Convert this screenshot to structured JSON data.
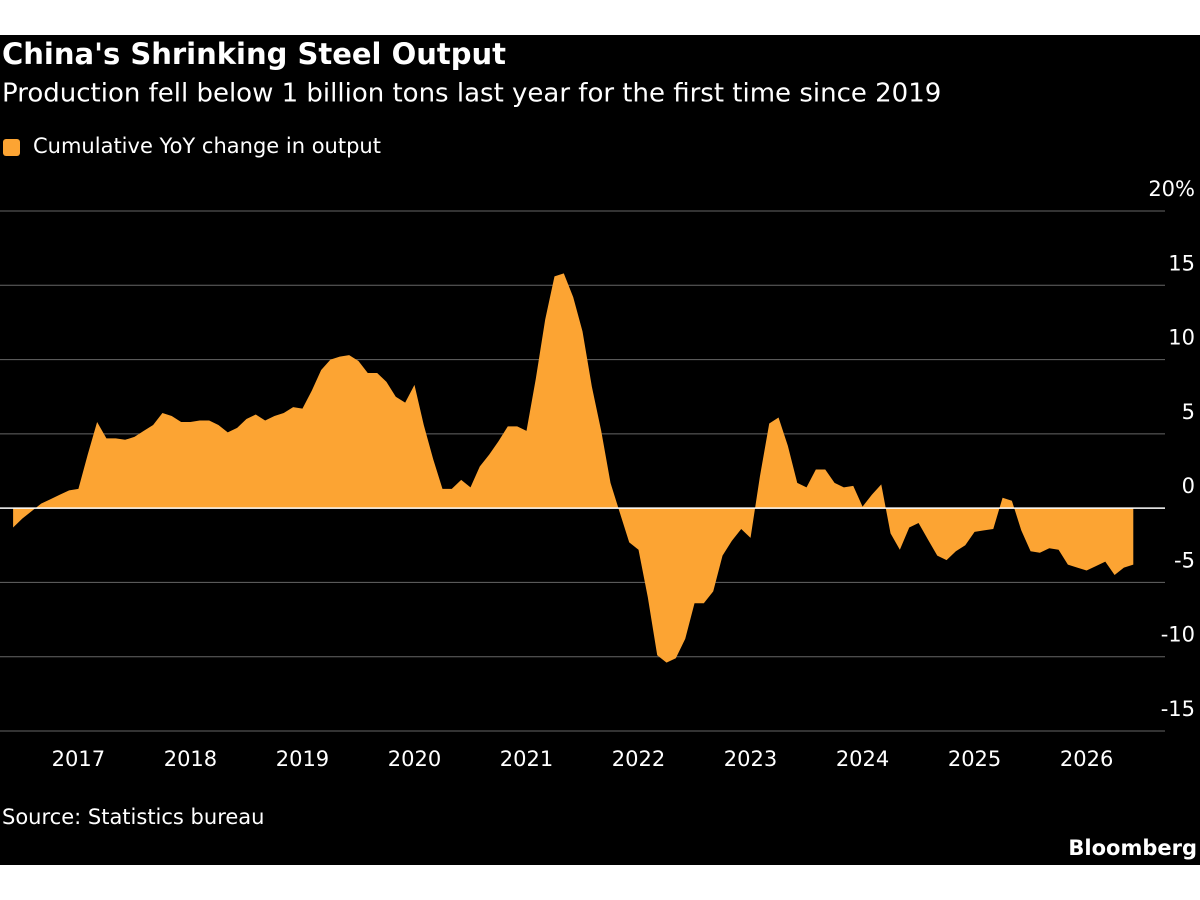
{
  "chart_data": {
    "type": "area",
    "title": "China's Shrinking Steel Output",
    "subtitle": "Production fell below 1 billion tons last year for the first time since 2019",
    "source": "Source: Statistics bureau",
    "brand": "Bloomberg",
    "legend": "top-left",
    "grid": true,
    "xlim": [
      2016.8,
      2027.2
    ],
    "ylim": [
      -15,
      20
    ],
    "xticks": [
      {
        "value": 2017.5,
        "label": "2017"
      },
      {
        "value": 2018.5,
        "label": "2018"
      },
      {
        "value": 2019.5,
        "label": "2019"
      },
      {
        "value": 2020.5,
        "label": "2020"
      },
      {
        "value": 2021.5,
        "label": "2021"
      },
      {
        "value": 2022.5,
        "label": "2022"
      },
      {
        "value": 2023.5,
        "label": "2023"
      },
      {
        "value": 2024.5,
        "label": "2024"
      },
      {
        "value": 2025.5,
        "label": "2025"
      },
      {
        "value": 2026.5,
        "label": "2026"
      }
    ],
    "yticks": [
      {
        "value": 20,
        "label": "20%"
      },
      15,
      10,
      5,
      0,
      -5,
      -10,
      -15
    ],
    "x": [
      2016.917,
      2017,
      2017.083,
      2017.167,
      2017.25,
      2017.333,
      2017.417,
      2017.5,
      2017.583,
      2017.667,
      2017.75,
      2017.833,
      2017.917,
      2018,
      2018.083,
      2018.167,
      2018.25,
      2018.333,
      2018.417,
      2018.5,
      2018.583,
      2018.667,
      2018.75,
      2018.833,
      2018.917,
      2019,
      2019.083,
      2019.167,
      2019.25,
      2019.333,
      2019.417,
      2019.5,
      2019.583,
      2019.667,
      2019.75,
      2019.833,
      2019.917,
      2020,
      2020.083,
      2020.167,
      2020.25,
      2020.333,
      2020.417,
      2020.5,
      2020.583,
      2020.667,
      2020.75,
      2020.833,
      2020.917,
      2021,
      2021.083,
      2021.167,
      2021.25,
      2021.333,
      2021.417,
      2021.5,
      2021.583,
      2021.667,
      2021.75,
      2021.833,
      2021.917,
      2022,
      2022.083,
      2022.167,
      2022.25,
      2022.333,
      2022.417,
      2022.5,
      2022.583,
      2022.667,
      2022.75,
      2022.833,
      2022.917,
      2023,
      2023.083,
      2023.167,
      2023.25,
      2023.333,
      2023.417,
      2023.5,
      2023.583,
      2023.667,
      2023.75,
      2023.833,
      2023.917,
      2024,
      2024.083,
      2024.167,
      2024.25,
      2024.333,
      2024.417,
      2024.5,
      2024.583,
      2024.667,
      2024.75,
      2024.833,
      2024.917,
      2025,
      2025.083,
      2025.167,
      2025.25,
      2025.333,
      2025.417,
      2025.5,
      2025.583,
      2025.667,
      2025.75,
      2025.833,
      2025.917,
      2026,
      2026.083,
      2026.167,
      2026.25,
      2026.333,
      2026.417,
      2026.5,
      2026.583,
      2026.667,
      2026.75,
      2026.833,
      2026.917
    ],
    "series": [
      {
        "name": "Cumulative YoY change in output",
        "color": "#fca433",
        "values": [
          -1.3,
          -0.7,
          -0.2,
          0.3,
          0.6,
          0.9,
          1.2,
          1.3,
          3.6,
          5.8,
          4.7,
          4.7,
          4.6,
          4.8,
          5.2,
          5.6,
          6.4,
          6.2,
          5.8,
          5.8,
          5.9,
          5.9,
          5.6,
          5.1,
          5.4,
          6.0,
          6.3,
          5.9,
          6.2,
          6.4,
          6.8,
          6.7,
          7.9,
          9.3,
          10.0,
          10.2,
          10.3,
          9.9,
          9.1,
          9.1,
          8.5,
          7.5,
          7.1,
          8.3,
          5.6,
          3.3,
          1.3,
          1.3,
          1.9,
          1.4,
          2.8,
          3.6,
          4.5,
          5.5,
          5.5,
          5.2,
          8.7,
          12.7,
          15.6,
          15.8,
          14.2,
          11.9,
          8.2,
          5.2,
          1.7,
          -0.3,
          -2.3,
          -2.8,
          -6.0,
          -9.9,
          -10.4,
          -10.1,
          -8.8,
          -6.4,
          -6.4,
          -5.6,
          -3.2,
          -2.2,
          -1.4,
          -2.0,
          2.1,
          5.7,
          6.1,
          4.2,
          1.7,
          1.4,
          2.6,
          2.6,
          1.7,
          1.4,
          1.5,
          0.1,
          0.9,
          1.6,
          -1.7,
          -2.8,
          -1.3,
          -1.0,
          -2.1,
          -3.2,
          -3.5,
          -2.9,
          -2.5,
          -1.6,
          -1.5,
          -1.4,
          0.7,
          0.5,
          -1.5,
          -2.9,
          -3.0,
          -2.7,
          -2.8,
          -3.8,
          -4.0,
          -4.2,
          -3.9,
          -3.6,
          -4.5,
          -4.0,
          -3.8
        ]
      }
    ]
  }
}
